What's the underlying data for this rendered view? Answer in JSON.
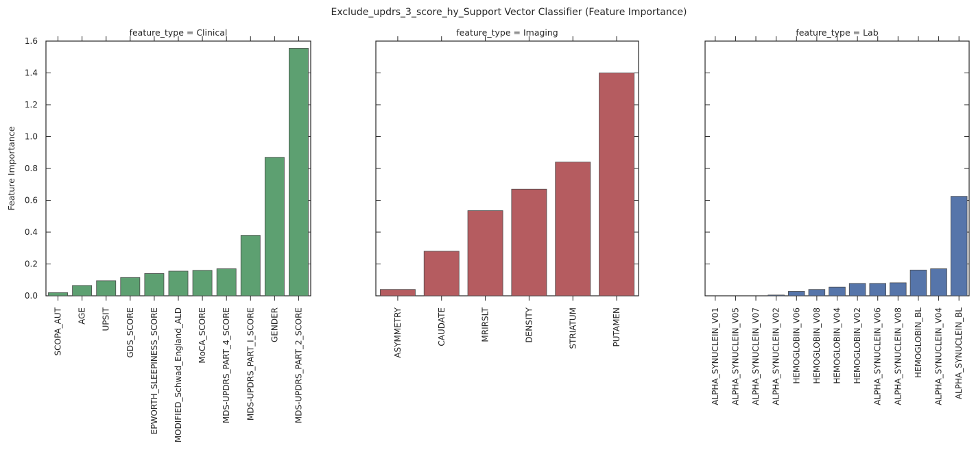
{
  "chart_data": {
    "type": "bar",
    "title": "Exclude_updrs_3_score_hy_Support Vector Classifier (Feature Importance)",
    "ylabel": "Feature Importance",
    "ylim": [
      0,
      1.6
    ],
    "yticks": [
      "0.0",
      "0.2",
      "0.4",
      "0.6",
      "0.8",
      "1.0",
      "1.2",
      "1.4",
      "1.6"
    ],
    "shared_y": true,
    "grid": false,
    "panels": [
      {
        "title": "feature_type = Clinical",
        "color": "#5da071",
        "categories": [
          "SCOPA_AUT",
          "AGE",
          "UPSIT",
          "GDS_SCORE",
          "EPWORTH_SLEEPINESS_SCORE",
          "MODIFIED_Schwad_England_ALD",
          "MoCA_SCORE",
          "MDS-UPDRS_PART_4_SCORE",
          "MDS-UPDRS_PART_I_SCORE",
          "GENDER",
          "MDS-UPDRS_PART_2_SCORE"
        ],
        "values": [
          0.02,
          0.065,
          0.095,
          0.115,
          0.14,
          0.155,
          0.16,
          0.17,
          0.38,
          0.87,
          1.555
        ]
      },
      {
        "title": "feature_type = Imaging",
        "color": "#b55c60",
        "categories": [
          "ASYMMETRY",
          "CAUDATE",
          "MRIRSLT",
          "DENSITY",
          "STRIATUM",
          "PUTAMEN"
        ],
        "values": [
          0.04,
          0.28,
          0.535,
          0.67,
          0.84,
          1.4
        ]
      },
      {
        "title": "feature_type = Lab",
        "color": "#5675aa",
        "categories": [
          "ALPHA_SYNUCLEIN_V01",
          "ALPHA_SYNUCLEIN_V05",
          "ALPHA_SYNUCLEIN_V07",
          "ALPHA_SYNUCLEIN_V02",
          "HEMOGLOBIN_V06",
          "HEMOGLOBIN_V08",
          "HEMOGLOBIN_V04",
          "HEMOGLOBIN_V02",
          "ALPHA_SYNUCLEIN_V06",
          "ALPHA_SYNUCLEIN_V08",
          "HEMOGLOBIN_BL",
          "ALPHA_SYNUCLEIN_V04",
          "ALPHA_SYNUCLEIN_BL"
        ],
        "values": [
          0.0,
          0.0,
          0.0,
          0.005,
          0.028,
          0.04,
          0.055,
          0.078,
          0.078,
          0.082,
          0.162,
          0.17,
          0.625
        ]
      }
    ]
  }
}
